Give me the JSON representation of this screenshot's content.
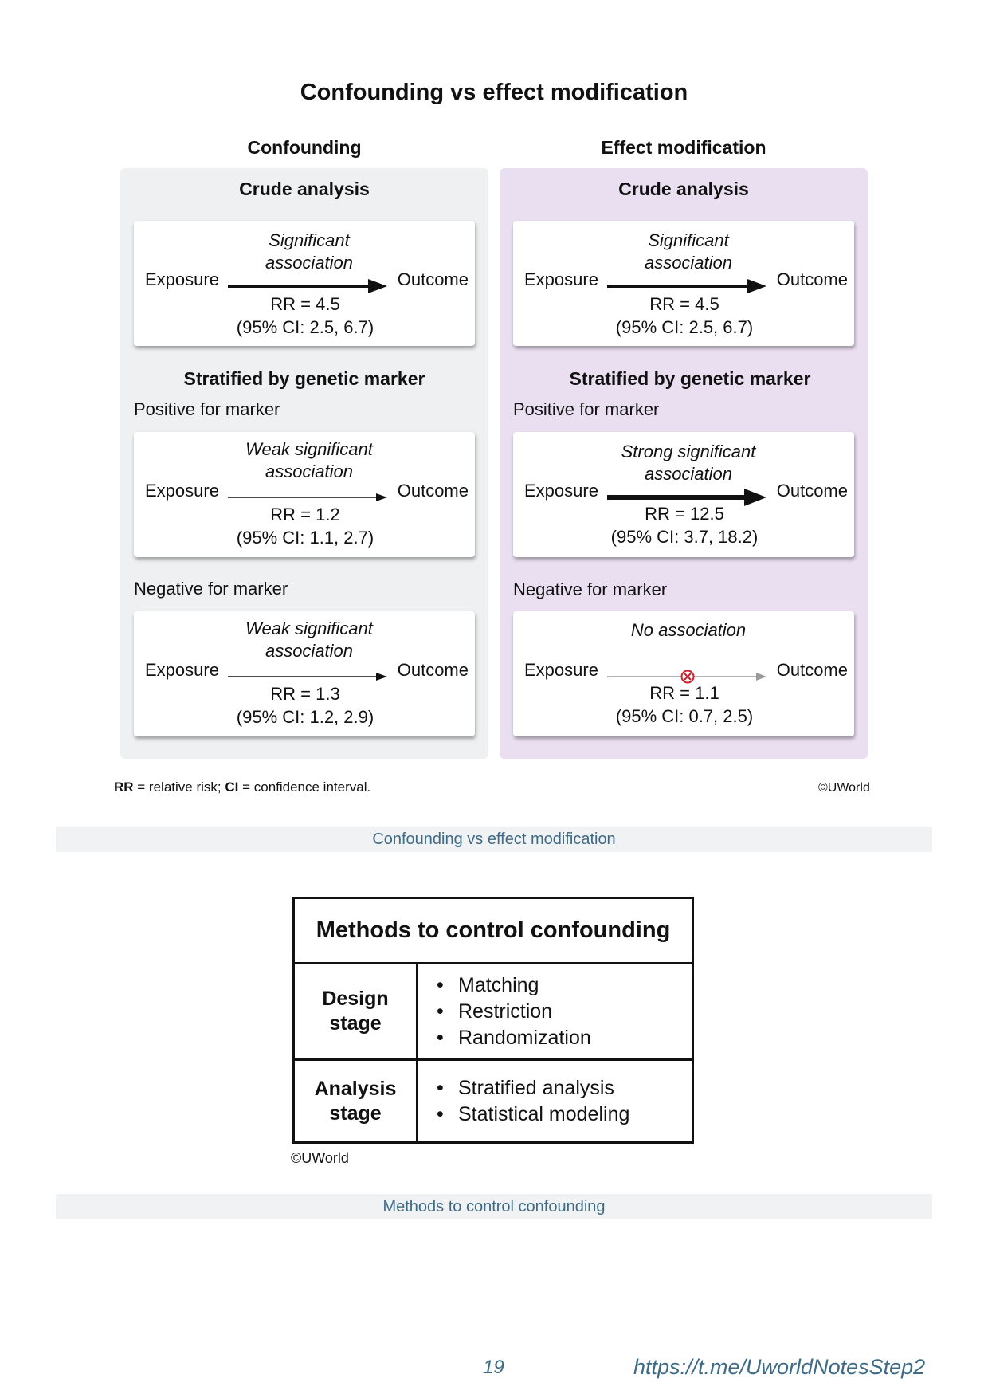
{
  "figure1": {
    "title": "Confounding vs effect modification",
    "columns": [
      {
        "heading": "Confounding",
        "crude_heading": "Crude analysis",
        "crude": {
          "association": "Significant association",
          "exposure": "Exposure",
          "outcome": "Outcome",
          "rr": "RR = 4.5",
          "ci": "(95% CI: 2.5, 6.7)"
        },
        "stratified_heading": "Stratified by genetic marker",
        "positive_label": "Positive for marker",
        "positive": {
          "association": "Weak significant association",
          "exposure": "Exposure",
          "outcome": "Outcome",
          "rr": "RR = 1.2",
          "ci": "(95% CI: 1.1, 2.7)"
        },
        "negative_label": "Negative for marker",
        "negative": {
          "association": "Weak significant association",
          "exposure": "Exposure",
          "outcome": "Outcome",
          "rr": "RR = 1.3",
          "ci": "(95% CI: 1.2, 2.9)"
        }
      },
      {
        "heading": "Effect modification",
        "crude_heading": "Crude analysis",
        "crude": {
          "association": "Significant association",
          "exposure": "Exposure",
          "outcome": "Outcome",
          "rr": "RR = 4.5",
          "ci": "(95% CI: 2.5, 6.7)"
        },
        "stratified_heading": "Stratified by genetic marker",
        "positive_label": "Positive for marker",
        "positive": {
          "association": "Strong significant association",
          "exposure": "Exposure",
          "outcome": "Outcome",
          "rr": "RR = 12.5",
          "ci": "(95% CI: 3.7, 18.2)"
        },
        "negative_label": "Negative for marker",
        "negative": {
          "association": "No association",
          "exposure": "Exposure",
          "outcome": "Outcome",
          "rr": "RR = 1.1",
          "ci": "(95% CI: 0.7, 2.5)"
        }
      }
    ],
    "abbrev_rr": "RR",
    "abbrev_rr_text": " = relative risk; ",
    "abbrev_ci": "CI",
    "abbrev_ci_text": " = confidence interval.",
    "copyright": "©UWorld",
    "caption": "Confounding vs effect modification"
  },
  "figure2": {
    "title": "Methods to control confounding",
    "rows": [
      {
        "stage": "Design stage",
        "methods": [
          "Matching",
          "Restriction",
          "Randomization"
        ]
      },
      {
        "stage": "Analysis stage",
        "methods": [
          "Stratified analysis",
          "Statistical modeling"
        ]
      }
    ],
    "copyright": "©UWorld",
    "caption": "Methods to control confounding"
  },
  "footer": {
    "page_number": "19",
    "link": "https://t.me/UworldNotesStep2"
  },
  "colors": {
    "confounding_panel": "#eef0f1",
    "effect_modification_panel": "#eadff1",
    "caption_text": "#3d6b86",
    "no_association_marker": "#d0202a"
  }
}
